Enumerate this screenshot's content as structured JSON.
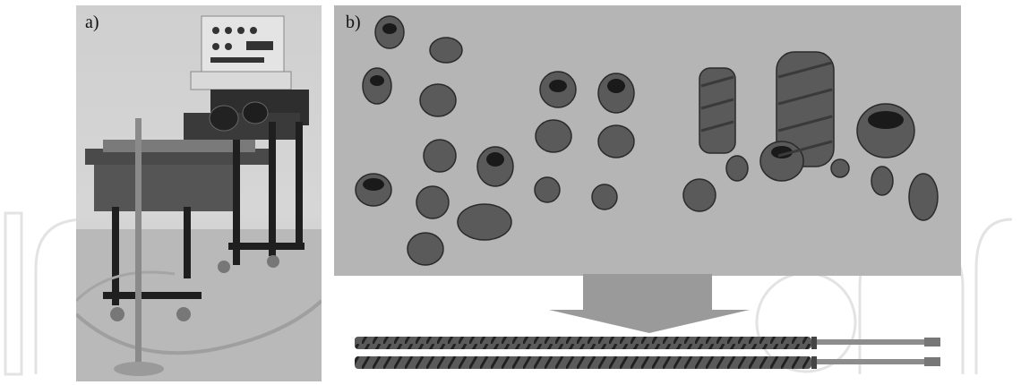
{
  "panel_a": {
    "label": "a)",
    "content": "photo"
  },
  "panel_b": {
    "label": "b)",
    "content": "photo"
  },
  "colors": {
    "panel_b_bg": "#b5b5b5",
    "panel_a_bg": "#c9c9c9",
    "arrow": "#9a9a9a",
    "watermark": "#e6e6e6"
  }
}
